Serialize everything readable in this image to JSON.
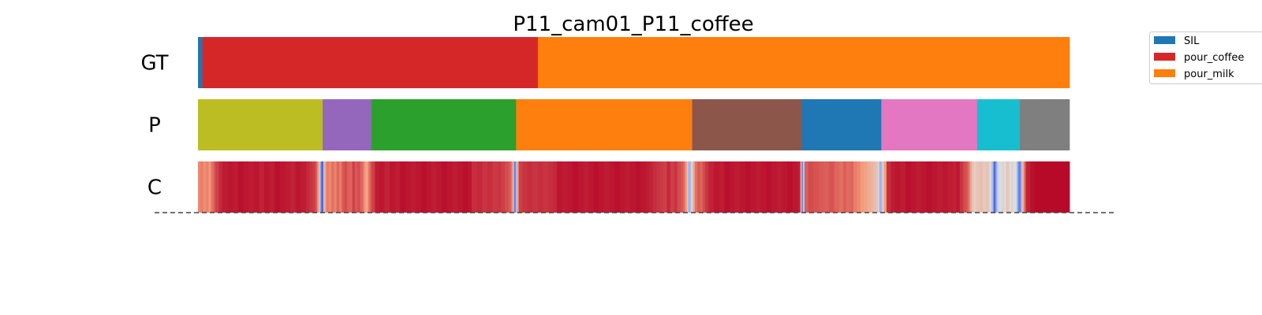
{
  "chart_data": {
    "type": "segmentation_bars",
    "title": "P11_cam01_P11_coffee",
    "total_frames": 1000,
    "rows": [
      {
        "label": "GT",
        "kind": "segments",
        "segments": [
          {
            "start": 0,
            "end": 5,
            "color": "#1f77b4"
          },
          {
            "start": 5,
            "end": 390,
            "color": "#d62728"
          },
          {
            "start": 390,
            "end": 1000,
            "color": "#ff7f0e"
          }
        ]
      },
      {
        "label": "P",
        "kind": "segments",
        "segments": [
          {
            "start": 0,
            "end": 143,
            "color": "#bcbd22"
          },
          {
            "start": 143,
            "end": 199,
            "color": "#9467bd"
          },
          {
            "start": 199,
            "end": 365,
            "color": "#2ca02c"
          },
          {
            "start": 365,
            "end": 567,
            "color": "#ff7f0e"
          },
          {
            "start": 567,
            "end": 693,
            "color": "#8c564b"
          },
          {
            "start": 693,
            "end": 784,
            "color": "#1f77b4"
          },
          {
            "start": 784,
            "end": 894,
            "color": "#e377c2"
          },
          {
            "start": 894,
            "end": 943,
            "color": "#17becf"
          },
          {
            "start": 943,
            "end": 1000,
            "color": "#7f7f7f"
          }
        ]
      },
      {
        "label": "C",
        "kind": "confidence",
        "colormap": "coolwarm",
        "values": [
          [
            0,
            0.78
          ],
          [
            3,
            0.8
          ],
          [
            6,
            0.77
          ],
          [
            9,
            0.79
          ],
          [
            12,
            0.76
          ],
          [
            15,
            0.82
          ],
          [
            18,
            0.86
          ],
          [
            20,
            0.9
          ],
          [
            24,
            0.94
          ],
          [
            28,
            0.96
          ],
          [
            34,
            0.97
          ],
          [
            40,
            0.96
          ],
          [
            46,
            0.98
          ],
          [
            52,
            0.97
          ],
          [
            58,
            0.96
          ],
          [
            64,
            0.97
          ],
          [
            70,
            0.95
          ],
          [
            76,
            0.97
          ],
          [
            82,
            0.96
          ],
          [
            88,
            0.98
          ],
          [
            94,
            0.97
          ],
          [
            100,
            0.96
          ],
          [
            106,
            0.95
          ],
          [
            112,
            0.97
          ],
          [
            118,
            0.96
          ],
          [
            124,
            0.94
          ],
          [
            128,
            0.92
          ],
          [
            132,
            0.9
          ],
          [
            135,
            0.85
          ],
          [
            137,
            0.75
          ],
          [
            139,
            0.55
          ],
          [
            140,
            0.3
          ],
          [
            141,
            0.15
          ],
          [
            142,
            0.08
          ],
          [
            143,
            0.1
          ],
          [
            144,
            0.45
          ],
          [
            145,
            0.7
          ],
          [
            147,
            0.8
          ],
          [
            150,
            0.78
          ],
          [
            153,
            0.82
          ],
          [
            156,
            0.79
          ],
          [
            159,
            0.84
          ],
          [
            162,
            0.8
          ],
          [
            165,
            0.86
          ],
          [
            168,
            0.88
          ],
          [
            171,
            0.85
          ],
          [
            174,
            0.84
          ],
          [
            177,
            0.9
          ],
          [
            180,
            0.86
          ],
          [
            183,
            0.88
          ],
          [
            186,
            0.84
          ],
          [
            189,
            0.8
          ],
          [
            191,
            0.75
          ],
          [
            193,
            0.7
          ],
          [
            195,
            0.8
          ],
          [
            197,
            0.85
          ],
          [
            199,
            0.9
          ],
          [
            203,
            0.96
          ],
          [
            208,
            0.97
          ],
          [
            214,
            0.95
          ],
          [
            220,
            0.97
          ],
          [
            226,
            0.96
          ],
          [
            232,
            0.98
          ],
          [
            238,
            0.97
          ],
          [
            244,
            0.96
          ],
          [
            250,
            0.97
          ],
          [
            256,
            0.98
          ],
          [
            262,
            0.97
          ],
          [
            268,
            0.96
          ],
          [
            274,
            0.97
          ],
          [
            280,
            0.98
          ],
          [
            286,
            0.97
          ],
          [
            292,
            0.96
          ],
          [
            298,
            0.97
          ],
          [
            304,
            0.98
          ],
          [
            310,
            0.97
          ],
          [
            314,
            0.93
          ],
          [
            320,
            0.94
          ],
          [
            326,
            0.92
          ],
          [
            332,
            0.93
          ],
          [
            338,
            0.91
          ],
          [
            344,
            0.92
          ],
          [
            348,
            0.9
          ],
          [
            352,
            0.88
          ],
          [
            356,
            0.86
          ],
          [
            359,
            0.8
          ],
          [
            361,
            0.6
          ],
          [
            362,
            0.3
          ],
          [
            363,
            0.15
          ],
          [
            364,
            0.2
          ],
          [
            365,
            0.45
          ],
          [
            366,
            0.75
          ],
          [
            368,
            0.9
          ],
          [
            372,
            0.92
          ],
          [
            378,
            0.93
          ],
          [
            384,
            0.92
          ],
          [
            390,
            0.93
          ],
          [
            396,
            0.92
          ],
          [
            402,
            0.93
          ],
          [
            408,
            0.94
          ],
          [
            412,
            0.97
          ],
          [
            418,
            0.96
          ],
          [
            424,
            0.97
          ],
          [
            430,
            0.98
          ],
          [
            436,
            0.97
          ],
          [
            442,
            0.96
          ],
          [
            448,
            0.97
          ],
          [
            454,
            0.98
          ],
          [
            460,
            0.97
          ],
          [
            466,
            0.96
          ],
          [
            472,
            0.97
          ],
          [
            478,
            0.98
          ],
          [
            484,
            0.97
          ],
          [
            490,
            0.96
          ],
          [
            496,
            0.97
          ],
          [
            502,
            0.98
          ],
          [
            508,
            0.97
          ],
          [
            514,
            0.96
          ],
          [
            518,
            0.95
          ],
          [
            522,
            0.93
          ],
          [
            526,
            0.92
          ],
          [
            530,
            0.91
          ],
          [
            534,
            0.9
          ],
          [
            538,
            0.94
          ],
          [
            542,
            0.9
          ],
          [
            546,
            0.92
          ],
          [
            550,
            0.88
          ],
          [
            554,
            0.86
          ],
          [
            557,
            0.82
          ],
          [
            559,
            0.75
          ],
          [
            561,
            0.6
          ],
          [
            562,
            0.4
          ],
          [
            563,
            0.3
          ],
          [
            564,
            0.35
          ],
          [
            565,
            0.4
          ],
          [
            566,
            0.5
          ],
          [
            567,
            0.6
          ],
          [
            568,
            0.7
          ],
          [
            570,
            0.82
          ],
          [
            573,
            0.86
          ],
          [
            576,
            0.84
          ],
          [
            579,
            0.88
          ],
          [
            582,
            0.92
          ],
          [
            586,
            0.95
          ],
          [
            592,
            0.97
          ],
          [
            598,
            0.96
          ],
          [
            604,
            0.98
          ],
          [
            610,
            0.97
          ],
          [
            616,
            0.96
          ],
          [
            622,
            0.97
          ],
          [
            628,
            0.98
          ],
          [
            634,
            0.97
          ],
          [
            640,
            0.96
          ],
          [
            646,
            0.97
          ],
          [
            652,
            0.98
          ],
          [
            658,
            0.97
          ],
          [
            664,
            0.96
          ],
          [
            670,
            0.97
          ],
          [
            676,
            0.98
          ],
          [
            682,
            0.97
          ],
          [
            688,
            0.96
          ],
          [
            691,
            0.7
          ],
          [
            692,
            0.3
          ],
          [
            693,
            0.15
          ],
          [
            694,
            0.4
          ],
          [
            696,
            0.85
          ],
          [
            700,
            0.88
          ],
          [
            706,
            0.87
          ],
          [
            712,
            0.86
          ],
          [
            718,
            0.85
          ],
          [
            724,
            0.87
          ],
          [
            730,
            0.84
          ],
          [
            736,
            0.82
          ],
          [
            740,
            0.85
          ],
          [
            744,
            0.83
          ],
          [
            748,
            0.84
          ],
          [
            752,
            0.8
          ],
          [
            756,
            0.78
          ],
          [
            760,
            0.75
          ],
          [
            764,
            0.72
          ],
          [
            768,
            0.68
          ],
          [
            772,
            0.65
          ],
          [
            775,
            0.62
          ],
          [
            778,
            0.6
          ],
          [
            780,
            0.55
          ],
          [
            781,
            0.45
          ],
          [
            782,
            0.3
          ],
          [
            783,
            0.35
          ],
          [
            785,
            0.55
          ],
          [
            787,
            0.75
          ],
          [
            790,
            0.93
          ],
          [
            795,
            0.96
          ],
          [
            800,
            0.97
          ],
          [
            806,
            0.96
          ],
          [
            812,
            0.98
          ],
          [
            818,
            0.97
          ],
          [
            824,
            0.96
          ],
          [
            830,
            0.97
          ],
          [
            836,
            0.98
          ],
          [
            842,
            0.97
          ],
          [
            848,
            0.96
          ],
          [
            854,
            0.97
          ],
          [
            860,
            0.96
          ],
          [
            866,
            0.95
          ],
          [
            870,
            0.97
          ],
          [
            874,
            0.92
          ],
          [
            878,
            0.88
          ],
          [
            882,
            0.85
          ],
          [
            884,
            0.8
          ],
          [
            886,
            0.7
          ],
          [
            888,
            0.6
          ],
          [
            890,
            0.55
          ],
          [
            892,
            0.58
          ],
          [
            894,
            0.6
          ],
          [
            897,
            0.62
          ],
          [
            900,
            0.58
          ],
          [
            904,
            0.6
          ],
          [
            908,
            0.5
          ],
          [
            910,
            0.4
          ],
          [
            912,
            0.25
          ],
          [
            913,
            0.12
          ],
          [
            914,
            0.05
          ],
          [
            915,
            0.3
          ],
          [
            917,
            0.45
          ],
          [
            919,
            0.5
          ],
          [
            921,
            0.48
          ],
          [
            923,
            0.55
          ],
          [
            925,
            0.5
          ],
          [
            927,
            0.6
          ],
          [
            929,
            0.58
          ],
          [
            931,
            0.5
          ],
          [
            933,
            0.55
          ],
          [
            935,
            0.5
          ],
          [
            937,
            0.5
          ],
          [
            939,
            0.42
          ],
          [
            940,
            0.3
          ],
          [
            941,
            0.2
          ],
          [
            942,
            0.15
          ],
          [
            943,
            0.18
          ],
          [
            944,
            0.25
          ],
          [
            945,
            0.55
          ],
          [
            946,
            0.7
          ],
          [
            948,
            0.85
          ],
          [
            950,
            0.95
          ],
          [
            955,
            0.98
          ],
          [
            960,
            0.99
          ],
          [
            970,
            0.99
          ],
          [
            980,
            0.99
          ],
          [
            990,
            0.99
          ],
          [
            1000,
            0.99
          ]
        ]
      }
    ],
    "legend": [
      {
        "label": "SIL",
        "color": "#1f77b4"
      },
      {
        "label": "pour_coffee",
        "color": "#d62728"
      },
      {
        "label": "pour_milk",
        "color": "#ff7f0e"
      }
    ]
  }
}
